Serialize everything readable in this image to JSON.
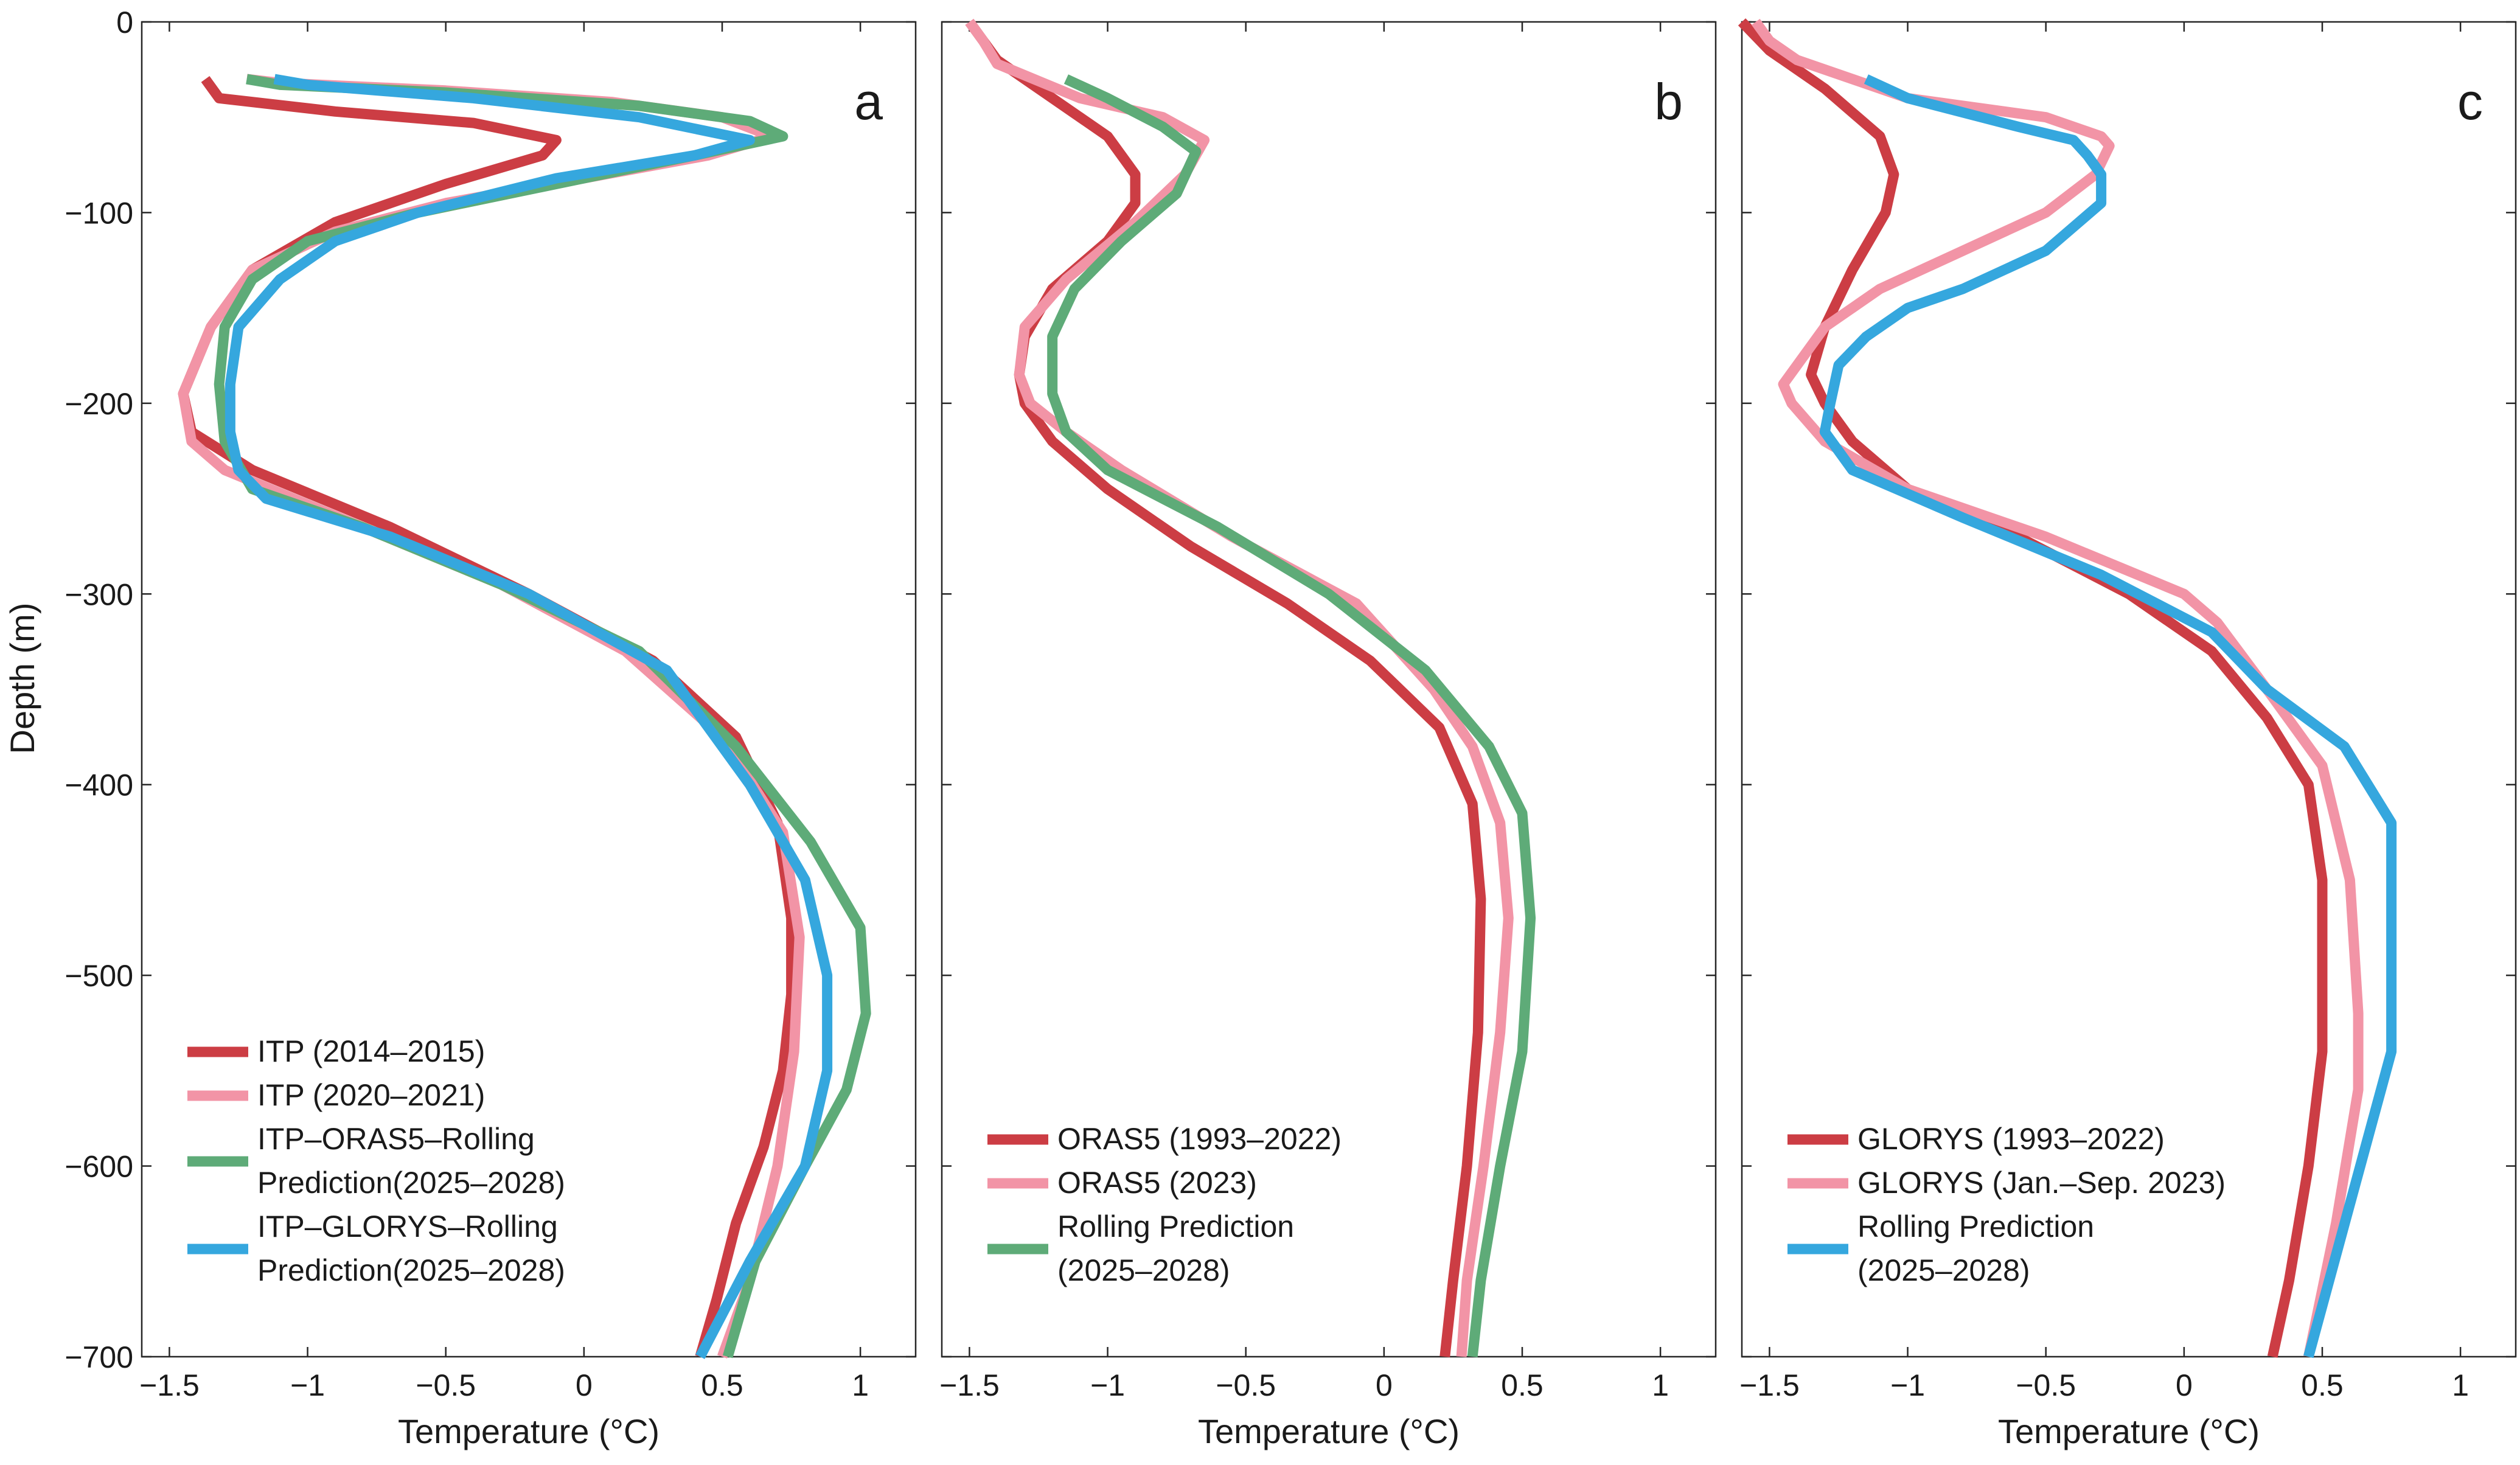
{
  "colors": {
    "itp_2014": "#CC3D44",
    "itp_2020": "#F294A6",
    "itp_oras5_pred": "#5EAB78",
    "itp_glorys_pred": "#35A7DE",
    "oras5_clim": "#CC3D44",
    "oras5_2023": "#F294A6",
    "oras5_pred": "#5EAB78",
    "glorys_clim": "#CC3D44",
    "glorys_2023": "#F294A6",
    "glorys_pred": "#35A7DE"
  },
  "chart_data": [
    {
      "type": "line",
      "panel_label": "a",
      "xlabel": "Temperature (°C)",
      "ylabel": "Depth (m)",
      "xlim": [
        -1.6,
        1.2
      ],
      "ylim": [
        -700,
        0
      ],
      "xticks": [
        -1.5,
        -1,
        -0.5,
        0,
        0.5,
        1
      ],
      "xtick_labels": [
        "−1.5",
        "−1",
        "−0.5",
        "0",
        "0.5",
        "1"
      ],
      "yticks": [
        0,
        -100,
        -200,
        -300,
        -400,
        -500,
        -600,
        -700
      ],
      "ytick_labels": [
        "0",
        "−100",
        "−200",
        "−300",
        "−400",
        "−500",
        "−600",
        "−700"
      ],
      "legend_position": "bottom-left",
      "series": [
        {
          "name": "ITP (2014–2015)",
          "legend_lines": [
            "ITP (2014–2015)"
          ],
          "color_key": "itp_2014",
          "x": [
            -1.37,
            -1.32,
            -0.9,
            -0.4,
            -0.1,
            -0.15,
            -0.5,
            -0.9,
            -1.2,
            -1.35,
            -1.45,
            -1.42,
            -1.2,
            -0.7,
            -0.2,
            0.25,
            0.55,
            0.7,
            0.75,
            0.75,
            0.72,
            0.65,
            0.55,
            0.48,
            0.42
          ],
          "y": [
            -30,
            -40,
            -47,
            -53,
            -62,
            -70,
            -85,
            -105,
            -130,
            -160,
            -195,
            -215,
            -235,
            -265,
            -300,
            -335,
            -375,
            -420,
            -470,
            -510,
            -550,
            -590,
            -630,
            -670,
            -700
          ]
        },
        {
          "name": "ITP (2020–2021)",
          "legend_lines": [
            "ITP (2020–2021)"
          ],
          "color_key": "itp_2020",
          "x": [
            -1.22,
            -1.1,
            -0.5,
            0.1,
            0.5,
            0.68,
            0.45,
            0.0,
            -0.5,
            -0.9,
            -1.2,
            -1.35,
            -1.45,
            -1.42,
            -1.3,
            -0.8,
            -0.3,
            0.15,
            0.5,
            0.72,
            0.78,
            0.76,
            0.7,
            0.6,
            0.5
          ],
          "y": [
            -30,
            -32,
            -36,
            -42,
            -50,
            -60,
            -70,
            -82,
            -95,
            -110,
            -130,
            -160,
            -195,
            -220,
            -235,
            -265,
            -295,
            -330,
            -375,
            -425,
            -480,
            -540,
            -600,
            -660,
            -700
          ]
        },
        {
          "name": "ITP–ORAS5–Rolling Prediction(2025–2028)",
          "legend_lines": [
            "ITP–ORAS5–Rolling",
            " Prediction(2025–2028)"
          ],
          "color_key": "itp_oras5_pred",
          "x": [
            -1.22,
            -1.1,
            -0.5,
            0.2,
            0.6,
            0.72,
            0.4,
            -0.1,
            -0.6,
            -1.0,
            -1.2,
            -1.3,
            -1.32,
            -1.3,
            -1.2,
            -0.8,
            -0.3,
            0.2,
            0.55,
            0.82,
            1.0,
            1.02,
            0.95,
            0.8,
            0.62,
            0.52
          ],
          "y": [
            -30,
            -33,
            -37,
            -44,
            -52,
            -60,
            -70,
            -85,
            -100,
            -115,
            -135,
            -160,
            -190,
            -220,
            -245,
            -265,
            -295,
            -330,
            -380,
            -430,
            -475,
            -520,
            -560,
            -600,
            -650,
            -700
          ]
        },
        {
          "name": "ITP–GLORYS–Rolling Prediction(2025–2028)",
          "legend_lines": [
            "ITP–GLORYS–Rolling",
            "Prediction(2025–2028)"
          ],
          "color_key": "itp_glorys_pred",
          "x": [
            -1.12,
            -1.0,
            -0.4,
            0.2,
            0.6,
            0.4,
            -0.1,
            -0.6,
            -0.9,
            -1.1,
            -1.25,
            -1.28,
            -1.28,
            -1.25,
            -1.15,
            -0.7,
            -0.2,
            0.3,
            0.6,
            0.8,
            0.88,
            0.88,
            0.8,
            0.6,
            0.42
          ],
          "y": [
            -30,
            -33,
            -40,
            -50,
            -62,
            -70,
            -82,
            -100,
            -115,
            -135,
            -160,
            -190,
            -215,
            -235,
            -250,
            -270,
            -300,
            -340,
            -400,
            -450,
            -500,
            -550,
            -600,
            -650,
            -700
          ]
        }
      ]
    },
    {
      "type": "line",
      "panel_label": "b",
      "xlabel": "Temperature (°C)",
      "ylabel": "",
      "xlim": [
        -1.6,
        1.2
      ],
      "ylim": [
        -700,
        0
      ],
      "xticks": [
        -1.5,
        -1,
        -0.5,
        0,
        0.5,
        1
      ],
      "xtick_labels": [
        "−1.5",
        "−1",
        "−0.5",
        "0",
        "0.5",
        "1"
      ],
      "yticks": [
        0,
        -100,
        -200,
        -300,
        -400,
        -500,
        -600,
        -700
      ],
      "legend_position": "bottom-left",
      "series": [
        {
          "name": "ORAS5 (1993–2022)",
          "legend_lines": [
            "ORAS5 (1993–2022)"
          ],
          "color_key": "oras5_clim",
          "x": [
            -1.5,
            -1.45,
            -1.4,
            -1.2,
            -1.0,
            -0.9,
            -0.9,
            -1.0,
            -1.2,
            -1.3,
            -1.32,
            -1.3,
            -1.2,
            -1.0,
            -0.7,
            -0.35,
            -0.05,
            0.2,
            0.32,
            0.35,
            0.34,
            0.3,
            0.25,
            0.22
          ],
          "y": [
            0,
            -10,
            -20,
            -40,
            -60,
            -80,
            -95,
            -115,
            -140,
            -165,
            -185,
            -200,
            -220,
            -245,
            -275,
            -305,
            -335,
            -370,
            -410,
            -460,
            -530,
            -600,
            -660,
            -700
          ]
        },
        {
          "name": "ORAS5 (2023)",
          "legend_lines": [
            "ORAS5 (2023)"
          ],
          "color_key": "oras5_2023",
          "x": [
            -1.5,
            -1.45,
            -1.4,
            -1.1,
            -0.8,
            -0.65,
            -0.72,
            -0.9,
            -1.15,
            -1.3,
            -1.32,
            -1.28,
            -1.15,
            -0.95,
            -0.55,
            -0.1,
            0.18,
            0.32,
            0.42,
            0.45,
            0.42,
            0.36,
            0.3,
            0.28
          ],
          "y": [
            0,
            -10,
            -22,
            -40,
            -50,
            -62,
            -80,
            -105,
            -135,
            -160,
            -185,
            -200,
            -215,
            -235,
            -270,
            -305,
            -350,
            -380,
            -420,
            -470,
            -530,
            -600,
            -660,
            -700
          ]
        },
        {
          "name": "Rolling Prediction (2025–2028)",
          "legend_lines": [
            "Rolling Prediction",
            "(2025–2028)"
          ],
          "color_key": "oras5_pred",
          "x": [
            -1.15,
            -1.0,
            -0.8,
            -0.68,
            -0.75,
            -0.95,
            -1.12,
            -1.2,
            -1.2,
            -1.15,
            -1.0,
            -0.6,
            -0.2,
            0.15,
            0.38,
            0.5,
            0.53,
            0.5,
            0.42,
            0.35,
            0.32
          ],
          "y": [
            -30,
            -40,
            -55,
            -68,
            -90,
            -115,
            -140,
            -165,
            -195,
            -215,
            -235,
            -265,
            -300,
            -340,
            -380,
            -415,
            -470,
            -540,
            -600,
            -660,
            -700
          ]
        }
      ]
    },
    {
      "type": "line",
      "panel_label": "c",
      "xlabel": "Temperature (°C)",
      "ylabel": "",
      "xlim": [
        -1.6,
        1.2
      ],
      "ylim": [
        -700,
        0
      ],
      "xticks": [
        -1.5,
        -1,
        -0.5,
        0,
        0.5,
        1
      ],
      "xtick_labels": [
        "−1.5",
        "−1",
        "−0.5",
        "0",
        "0.5",
        "1"
      ],
      "yticks": [
        0,
        -100,
        -200,
        -300,
        -400,
        -500,
        -600,
        -700
      ],
      "legend_position": "bottom-left",
      "series": [
        {
          "name": "GLORYS (1993–2022)",
          "legend_lines": [
            "GLORYS (1993–2022)"
          ],
          "color_key": "glorys_clim",
          "x": [
            -1.6,
            -1.5,
            -1.3,
            -1.1,
            -1.05,
            -1.08,
            -1.2,
            -1.3,
            -1.35,
            -1.3,
            -1.2,
            -1.0,
            -0.6,
            -0.2,
            0.1,
            0.3,
            0.45,
            0.5,
            0.5,
            0.45,
            0.38,
            0.32
          ],
          "y": [
            0,
            -15,
            -35,
            -60,
            -80,
            -100,
            -130,
            -160,
            -185,
            -200,
            -220,
            -245,
            -270,
            -300,
            -330,
            -365,
            -400,
            -450,
            -540,
            -600,
            -660,
            -700
          ]
        },
        {
          "name": "GLORYS (Jan.–Sep. 2023)",
          "legend_lines": [
            "GLORYS (Jan.–Sep. 2023)"
          ],
          "color_key": "glorys_2023",
          "x": [
            -1.55,
            -1.5,
            -1.4,
            -1.0,
            -0.5,
            -0.3,
            -0.27,
            -0.32,
            -0.5,
            -0.8,
            -1.1,
            -1.3,
            -1.45,
            -1.42,
            -1.3,
            -1.0,
            -0.5,
            0.0,
            0.12,
            0.3,
            0.5,
            0.6,
            0.63,
            0.63,
            0.55,
            0.45
          ],
          "y": [
            0,
            -10,
            -20,
            -40,
            -50,
            -60,
            -65,
            -80,
            -100,
            -120,
            -140,
            -160,
            -190,
            -200,
            -220,
            -245,
            -270,
            -300,
            -315,
            -350,
            -390,
            -450,
            -520,
            -560,
            -630,
            -700
          ]
        },
        {
          "name": "Rolling Prediction (2025–2028)",
          "legend_lines": [
            "Rolling Prediction",
            "(2025–2028)"
          ],
          "color_key": "glorys_pred",
          "x": [
            -1.15,
            -1.0,
            -0.6,
            -0.4,
            -0.35,
            -0.3,
            -0.3,
            -0.5,
            -0.8,
            -1.0,
            -1.15,
            -1.25,
            -1.28,
            -1.3,
            -1.2,
            -0.8,
            -0.3,
            0.1,
            0.3,
            0.58,
            0.75,
            0.75,
            0.75,
            0.6,
            0.45
          ],
          "y": [
            -30,
            -40,
            -55,
            -62,
            -70,
            -80,
            -95,
            -120,
            -140,
            -150,
            -165,
            -180,
            -200,
            -215,
            -235,
            -260,
            -290,
            -320,
            -350,
            -380,
            -420,
            -460,
            -540,
            -620,
            -700
          ]
        }
      ]
    }
  ]
}
